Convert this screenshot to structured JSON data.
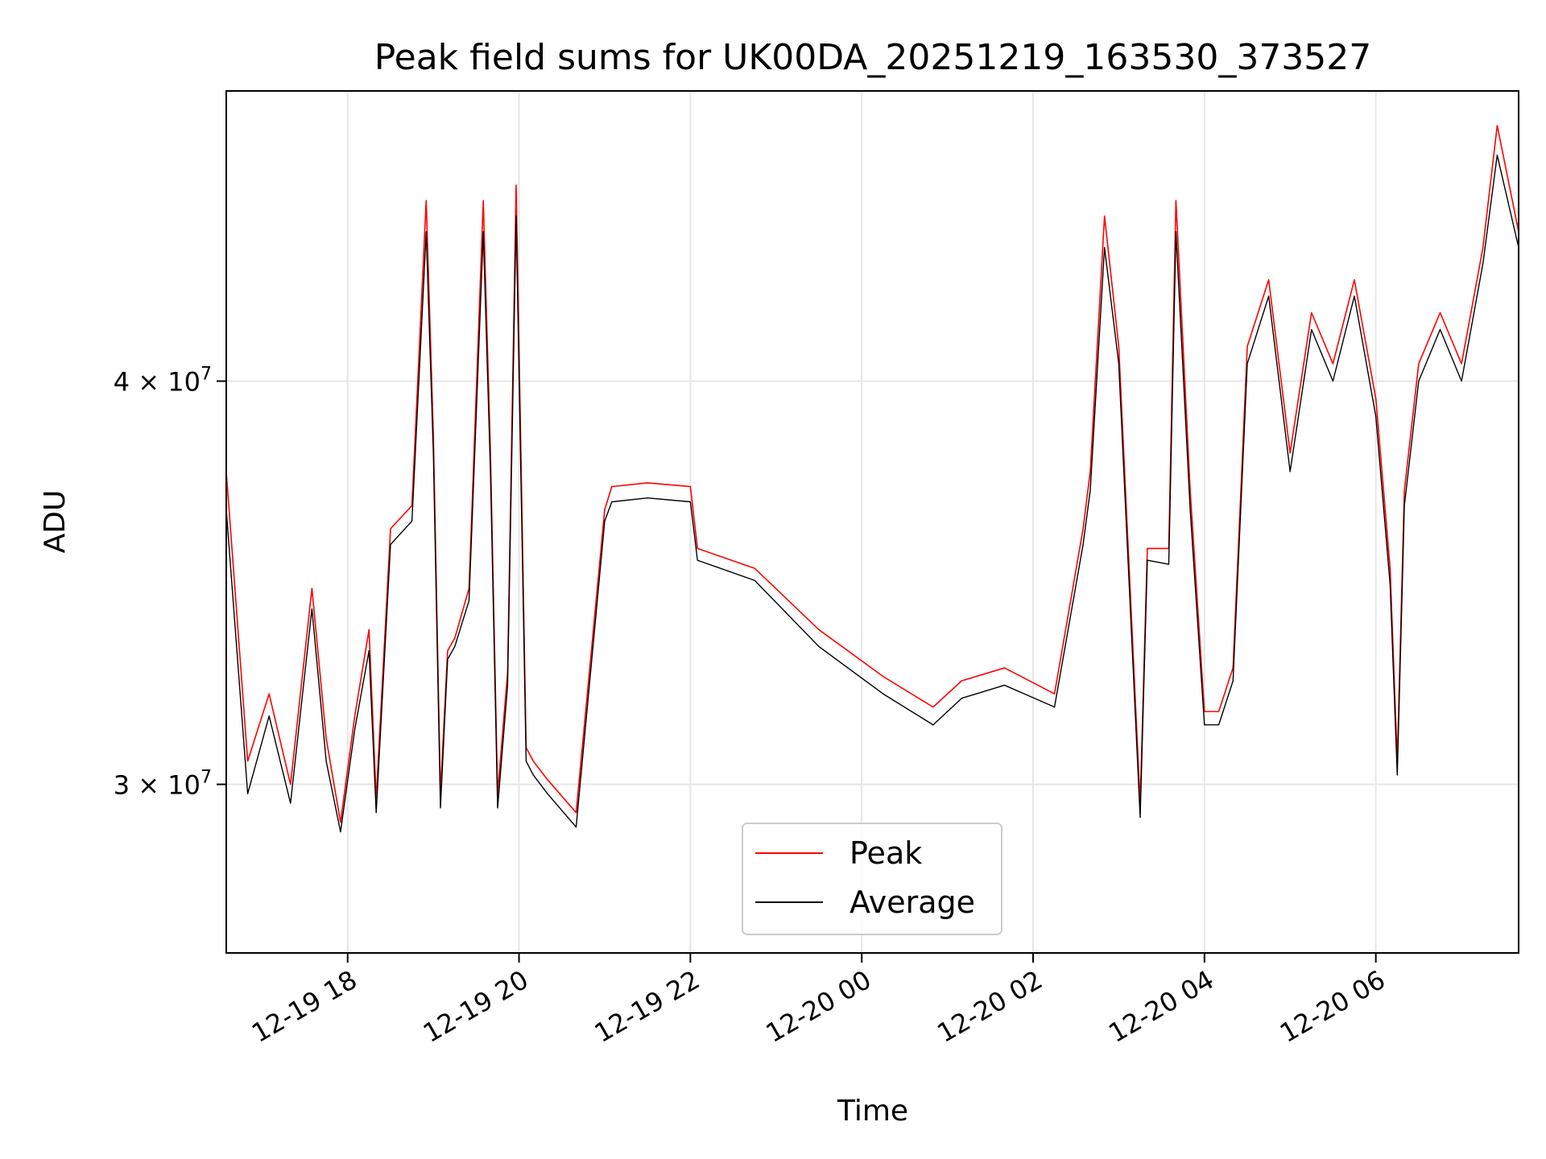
{
  "chart_data": {
    "type": "line",
    "title": "Peak field sums for UK00DA_20251219_163530_373527",
    "xlabel": "Time",
    "ylabel": "ADU",
    "y_scale": "log",
    "ylim": [
      26600000,
      49200000
    ],
    "xlim": [
      "2025-12-19 16:35",
      "2025-12-20 07:40"
    ],
    "x_ticks": [
      {
        "t": "2025-12-19 18:00",
        "label": "12-19 18"
      },
      {
        "t": "2025-12-19 20:00",
        "label": "12-19 20"
      },
      {
        "t": "2025-12-19 22:00",
        "label": "12-19 22"
      },
      {
        "t": "2025-12-20 00:00",
        "label": "12-20 00"
      },
      {
        "t": "2025-12-20 02:00",
        "label": "12-20 02"
      },
      {
        "t": "2025-12-20 04:00",
        "label": "12-20 04"
      },
      {
        "t": "2025-12-20 06:00",
        "label": "12-20 06"
      }
    ],
    "y_ticks": [
      {
        "v": 30000000,
        "mantissa": "3",
        "exp": "7"
      },
      {
        "v": 40000000,
        "mantissa": "4",
        "exp": "7"
      }
    ],
    "grid": true,
    "legend": {
      "position": "bottom-center"
    },
    "series": [
      {
        "name": "Peak",
        "color": "#ff0000",
        "x": [
          "2025-12-19 16:35",
          "2025-12-19 16:50",
          "2025-12-19 17:05",
          "2025-12-19 17:20",
          "2025-12-19 17:35",
          "2025-12-19 17:45",
          "2025-12-19 17:55",
          "2025-12-19 18:05",
          "2025-12-19 18:15",
          "2025-12-19 18:20",
          "2025-12-19 18:30",
          "2025-12-19 18:45",
          "2025-12-19 18:55",
          "2025-12-19 19:00",
          "2025-12-19 19:05",
          "2025-12-19 19:10",
          "2025-12-19 19:15",
          "2025-12-19 19:25",
          "2025-12-19 19:35",
          "2025-12-19 19:40",
          "2025-12-19 19:45",
          "2025-12-19 19:52",
          "2025-12-19 19:58",
          "2025-12-19 20:05",
          "2025-12-19 20:10",
          "2025-12-19 20:20",
          "2025-12-19 20:40",
          "2025-12-19 21:00",
          "2025-12-19 21:05",
          "2025-12-19 21:30",
          "2025-12-19 22:00",
          "2025-12-19 22:05",
          "2025-12-19 22:45",
          "2025-12-19 23:30",
          "2025-12-20 00:15",
          "2025-12-20 00:50",
          "2025-12-20 01:10",
          "2025-12-20 01:40",
          "2025-12-20 02:15",
          "2025-12-20 02:35",
          "2025-12-20 02:40",
          "2025-12-20 02:50",
          "2025-12-20 03:00",
          "2025-12-20 03:15",
          "2025-12-20 03:20",
          "2025-12-20 03:35",
          "2025-12-20 03:40",
          "2025-12-20 03:50",
          "2025-12-20 04:00",
          "2025-12-20 04:10",
          "2025-12-20 04:20",
          "2025-12-20 04:30",
          "2025-12-20 04:45",
          "2025-12-20 05:00",
          "2025-12-20 05:15",
          "2025-12-20 05:30",
          "2025-12-20 05:45",
          "2025-12-20 06:00",
          "2025-12-20 06:10",
          "2025-12-20 06:15",
          "2025-12-20 06:20",
          "2025-12-20 06:30",
          "2025-12-20 06:45",
          "2025-12-20 07:00",
          "2025-12-20 07:15",
          "2025-12-20 07:25",
          "2025-12-20 07:40"
        ],
        "y": [
          37500000,
          30500000,
          32000000,
          30000000,
          34500000,
          31000000,
          29200000,
          31500000,
          33500000,
          29700000,
          36000000,
          36600000,
          45500000,
          38500000,
          29800000,
          33000000,
          33300000,
          34500000,
          45500000,
          38000000,
          29800000,
          32500000,
          46000000,
          30800000,
          30500000,
          30100000,
          29400000,
          36500000,
          37100000,
          37200000,
          37100000,
          35500000,
          35000000,
          33500000,
          32400000,
          31700000,
          32300000,
          32600000,
          32000000,
          36000000,
          37500000,
          45000000,
          41000000,
          29600000,
          35500000,
          35500000,
          45500000,
          37000000,
          31600000,
          31600000,
          32600000,
          41000000,
          43000000,
          38000000,
          42000000,
          40500000,
          43000000,
          39500000,
          35000000,
          30500000,
          37000000,
          40500000,
          42000000,
          40500000,
          44000000,
          48000000,
          44500000
        ]
      },
      {
        "name": "Average",
        "color": "#000000",
        "x": [
          "2025-12-19 16:35",
          "2025-12-19 16:50",
          "2025-12-19 17:05",
          "2025-12-19 17:20",
          "2025-12-19 17:35",
          "2025-12-19 17:45",
          "2025-12-19 17:55",
          "2025-12-19 18:05",
          "2025-12-19 18:15",
          "2025-12-19 18:20",
          "2025-12-19 18:30",
          "2025-12-19 18:45",
          "2025-12-19 18:55",
          "2025-12-19 19:00",
          "2025-12-19 19:05",
          "2025-12-19 19:10",
          "2025-12-19 19:15",
          "2025-12-19 19:25",
          "2025-12-19 19:35",
          "2025-12-19 19:40",
          "2025-12-19 19:45",
          "2025-12-19 19:52",
          "2025-12-19 19:58",
          "2025-12-19 20:05",
          "2025-12-19 20:10",
          "2025-12-19 20:20",
          "2025-12-19 20:40",
          "2025-12-19 21:00",
          "2025-12-19 21:05",
          "2025-12-19 21:30",
          "2025-12-19 22:00",
          "2025-12-19 22:05",
          "2025-12-19 22:45",
          "2025-12-19 23:30",
          "2025-12-20 00:15",
          "2025-12-20 00:50",
          "2025-12-20 01:10",
          "2025-12-20 01:40",
          "2025-12-20 02:15",
          "2025-12-20 02:35",
          "2025-12-20 02:40",
          "2025-12-20 02:50",
          "2025-12-20 03:00",
          "2025-12-20 03:15",
          "2025-12-20 03:20",
          "2025-12-20 03:35",
          "2025-12-20 03:40",
          "2025-12-20 03:50",
          "2025-12-20 04:00",
          "2025-12-20 04:10",
          "2025-12-20 04:20",
          "2025-12-20 04:30",
          "2025-12-20 04:45",
          "2025-12-20 05:00",
          "2025-12-20 05:15",
          "2025-12-20 05:30",
          "2025-12-20 05:45",
          "2025-12-20 06:00",
          "2025-12-20 06:10",
          "2025-12-20 06:15",
          "2025-12-20 06:20",
          "2025-12-20 06:30",
          "2025-12-20 06:45",
          "2025-12-20 07:00",
          "2025-12-20 07:15",
          "2025-12-20 07:25",
          "2025-12-20 07:40"
        ],
        "y": [
          36500000,
          29800000,
          31500000,
          29600000,
          34000000,
          30500000,
          29000000,
          31200000,
          33000000,
          29400000,
          35600000,
          36200000,
          44500000,
          38000000,
          29500000,
          32800000,
          33100000,
          34200000,
          44500000,
          37500000,
          29500000,
          32200000,
          45000000,
          30500000,
          30200000,
          29800000,
          29100000,
          36200000,
          36700000,
          36800000,
          36700000,
          35200000,
          34700000,
          33100000,
          32000000,
          31300000,
          31900000,
          32200000,
          31700000,
          35600000,
          37000000,
          44000000,
          40500000,
          29300000,
          35200000,
          35100000,
          44500000,
          36500000,
          31300000,
          31300000,
          32300000,
          40500000,
          42500000,
          37500000,
          41500000,
          40000000,
          42500000,
          39000000,
          34600000,
          30200000,
          36600000,
          40000000,
          41500000,
          40000000,
          43500000,
          47000000,
          44000000
        ]
      }
    ]
  }
}
